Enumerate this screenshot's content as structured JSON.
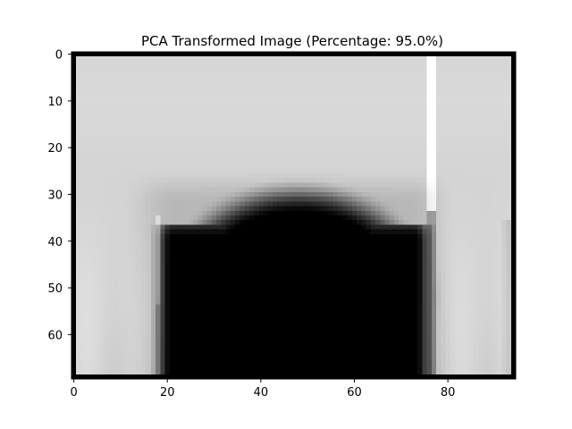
{
  "chart_data": {
    "type": "heatmap",
    "title": "PCA Transformed Image (Percentage: 95.0%)",
    "colormap": "gray",
    "image_shape": [
      70,
      95
    ],
    "xlim": [
      -0.5,
      94.5
    ],
    "ylim": [
      69.5,
      -0.5
    ],
    "x_ticks": [
      0,
      20,
      40,
      60,
      80
    ],
    "y_ticks": [
      0,
      10,
      20,
      30,
      40,
      50,
      60
    ],
    "xlabel": "",
    "ylabel": "",
    "grid": false,
    "content": {
      "background_top_level": 0.8,
      "background_left_level": 0.86,
      "background_right_level": 0.88,
      "dark_object": {
        "center": [
          48,
          52
        ],
        "radius_x": 29,
        "radius_y": 24,
        "left_edge": 19,
        "right_edge": 76,
        "top": 29,
        "level": 0.07
      },
      "bright_vertical_line_x": 76,
      "border_level": 0.0
    }
  }
}
